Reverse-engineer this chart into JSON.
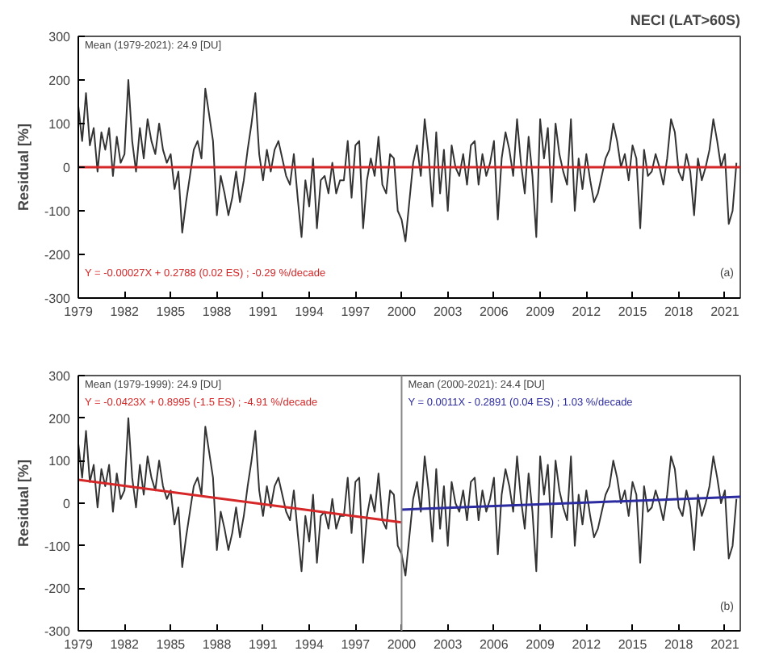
{
  "chart_data": [
    {
      "type": "line",
      "title": "NECI (LAT>60S)",
      "ylabel": "Residual [%]",
      "xlim": [
        1979,
        2022
      ],
      "xticks": [
        1979,
        1982,
        1985,
        1988,
        1991,
        1994,
        1997,
        2000,
        2003,
        2006,
        2009,
        2012,
        2015,
        2018,
        2021
      ],
      "ylim": [
        -300,
        300
      ],
      "yticks": [
        -300,
        -200,
        -100,
        0,
        100,
        200,
        300
      ],
      "grid": false,
      "marker": "none",
      "line_style": "solid",
      "x": [
        1979,
        1979.25,
        1979.5,
        1979.75,
        1980,
        1980.25,
        1980.5,
        1980.75,
        1981,
        1981.25,
        1981.5,
        1981.75,
        1982,
        1982.25,
        1982.5,
        1982.75,
        1983,
        1983.25,
        1983.5,
        1983.75,
        1984,
        1984.25,
        1984.5,
        1984.75,
        1985,
        1985.25,
        1985.5,
        1985.75,
        1986,
        1986.25,
        1986.5,
        1986.75,
        1987,
        1987.25,
        1987.5,
        1987.75,
        1988,
        1988.25,
        1988.5,
        1988.75,
        1989,
        1989.25,
        1989.5,
        1989.75,
        1990,
        1990.25,
        1990.5,
        1990.75,
        1991,
        1991.25,
        1991.5,
        1991.75,
        1992,
        1992.25,
        1992.5,
        1992.75,
        1993,
        1993.25,
        1993.5,
        1993.75,
        1994,
        1994.25,
        1994.5,
        1994.75,
        1995,
        1995.25,
        1995.5,
        1995.75,
        1996,
        1996.25,
        1996.5,
        1996.75,
        1997,
        1997.25,
        1997.5,
        1997.75,
        1998,
        1998.25,
        1998.5,
        1998.75,
        1999,
        1999.25,
        1999.5,
        1999.75,
        2000,
        2000.25,
        2000.5,
        2000.75,
        2001,
        2001.25,
        2001.5,
        2001.75,
        2002,
        2002.25,
        2002.5,
        2002.75,
        2003,
        2003.25,
        2003.5,
        2003.75,
        2004,
        2004.25,
        2004.5,
        2004.75,
        2005,
        2005.25,
        2005.5,
        2005.75,
        2006,
        2006.25,
        2006.5,
        2006.75,
        2007,
        2007.25,
        2007.5,
        2007.75,
        2008,
        2008.25,
        2008.5,
        2008.75,
        2009,
        2009.25,
        2009.5,
        2009.75,
        2010,
        2010.25,
        2010.5,
        2010.75,
        2011,
        2011.25,
        2011.5,
        2011.75,
        2012,
        2012.25,
        2012.5,
        2012.75,
        2013,
        2013.25,
        2013.5,
        2013.75,
        2014,
        2014.25,
        2014.5,
        2014.75,
        2015,
        2015.25,
        2015.5,
        2015.75,
        2016,
        2016.25,
        2016.5,
        2016.75,
        2017,
        2017.25,
        2017.5,
        2017.75,
        2018,
        2018.25,
        2018.5,
        2018.75,
        2019,
        2019.25,
        2019.5,
        2019.75,
        2020,
        2020.25,
        2020.5,
        2020.75,
        2021,
        2021.25,
        2021.5,
        2021.75
      ],
      "series": [
        {
          "color": "#333333",
          "values": [
            140,
            60,
            170,
            50,
            90,
            -10,
            80,
            40,
            90,
            -20,
            70,
            10,
            30,
            200,
            60,
            -10,
            90,
            20,
            110,
            60,
            30,
            100,
            40,
            10,
            30,
            -50,
            -10,
            -150,
            -80,
            -20,
            40,
            60,
            20,
            180,
            120,
            60,
            -110,
            -20,
            -60,
            -110,
            -70,
            -10,
            -80,
            -30,
            40,
            100,
            170,
            30,
            -30,
            40,
            -10,
            40,
            60,
            20,
            -20,
            -40,
            30,
            -70,
            -160,
            -30,
            -90,
            20,
            -140,
            -30,
            -20,
            -60,
            10,
            -60,
            -30,
            -30,
            60,
            -70,
            50,
            60,
            -140,
            -30,
            20,
            -20,
            70,
            -40,
            -60,
            30,
            20,
            -100,
            -120,
            -170,
            -80,
            10,
            50,
            -20,
            110,
            30,
            -90,
            80,
            -60,
            40,
            -100,
            50,
            0,
            -20,
            30,
            -40,
            50,
            60,
            -40,
            30,
            -20,
            10,
            60,
            -120,
            20,
            80,
            40,
            -20,
            110,
            10,
            -60,
            70,
            -20,
            -160,
            110,
            20,
            90,
            -80,
            100,
            30,
            -10,
            -40,
            110,
            -100,
            20,
            -50,
            30,
            -30,
            -80,
            -60,
            -20,
            20,
            40,
            100,
            60,
            0,
            30,
            -30,
            50,
            20,
            -140,
            40,
            -20,
            -10,
            30,
            0,
            -40,
            20,
            110,
            80,
            -10,
            -30,
            30,
            -10,
            -110,
            20,
            -30,
            0,
            40,
            110,
            60,
            0,
            30,
            -130,
            -100,
            10
          ]
        },
        {
          "type": "line",
          "name": "Y = -0.00027X + 0.2788 (0.02 ES) ; -0.29 %/decade",
          "color": "#d62728",
          "x": [
            1979,
            2022
          ],
          "values": [
            0,
            0
          ]
        }
      ],
      "annotations": [
        "Mean (1979-2021): 24.9 [DU]",
        "(a)"
      ]
    },
    {
      "type": "line",
      "ylabel": "Residual [%]",
      "xlim": [
        1979,
        2022
      ],
      "xticks": [
        1979,
        1982,
        1985,
        1988,
        1991,
        1994,
        1997,
        2000,
        2003,
        2006,
        2009,
        2012,
        2015,
        2018,
        2021
      ],
      "ylim": [
        -300,
        300
      ],
      "yticks": [
        -300,
        -200,
        -100,
        0,
        100,
        200,
        300
      ],
      "grid": false,
      "marker": "none",
      "line_style": "solid",
      "x": [
        1979,
        1979.25,
        1979.5,
        1979.75,
        1980,
        1980.25,
        1980.5,
        1980.75,
        1981,
        1981.25,
        1981.5,
        1981.75,
        1982,
        1982.25,
        1982.5,
        1982.75,
        1983,
        1983.25,
        1983.5,
        1983.75,
        1984,
        1984.25,
        1984.5,
        1984.75,
        1985,
        1985.25,
        1985.5,
        1985.75,
        1986,
        1986.25,
        1986.5,
        1986.75,
        1987,
        1987.25,
        1987.5,
        1987.75,
        1988,
        1988.25,
        1988.5,
        1988.75,
        1989,
        1989.25,
        1989.5,
        1989.75,
        1990,
        1990.25,
        1990.5,
        1990.75,
        1991,
        1991.25,
        1991.5,
        1991.75,
        1992,
        1992.25,
        1992.5,
        1992.75,
        1993,
        1993.25,
        1993.5,
        1993.75,
        1994,
        1994.25,
        1994.5,
        1994.75,
        1995,
        1995.25,
        1995.5,
        1995.75,
        1996,
        1996.25,
        1996.5,
        1996.75,
        1997,
        1997.25,
        1997.5,
        1997.75,
        1998,
        1998.25,
        1998.5,
        1998.75,
        1999,
        1999.25,
        1999.5,
        1999.75,
        2000,
        2000.25,
        2000.5,
        2000.75,
        2001,
        2001.25,
        2001.5,
        2001.75,
        2002,
        2002.25,
        2002.5,
        2002.75,
        2003,
        2003.25,
        2003.5,
        2003.75,
        2004,
        2004.25,
        2004.5,
        2004.75,
        2005,
        2005.25,
        2005.5,
        2005.75,
        2006,
        2006.25,
        2006.5,
        2006.75,
        2007,
        2007.25,
        2007.5,
        2007.75,
        2008,
        2008.25,
        2008.5,
        2008.75,
        2009,
        2009.25,
        2009.5,
        2009.75,
        2010,
        2010.25,
        2010.5,
        2010.75,
        2011,
        2011.25,
        2011.5,
        2011.75,
        2012,
        2012.25,
        2012.5,
        2012.75,
        2013,
        2013.25,
        2013.5,
        2013.75,
        2014,
        2014.25,
        2014.5,
        2014.75,
        2015,
        2015.25,
        2015.5,
        2015.75,
        2016,
        2016.25,
        2016.5,
        2016.75,
        2017,
        2017.25,
        2017.5,
        2017.75,
        2018,
        2018.25,
        2018.5,
        2018.75,
        2019,
        2019.25,
        2019.5,
        2019.75,
        2020,
        2020.25,
        2020.5,
        2020.75,
        2021,
        2021.25,
        2021.5,
        2021.75
      ],
      "series": [
        {
          "color": "#333333",
          "values": [
            140,
            60,
            170,
            50,
            90,
            -10,
            80,
            40,
            90,
            -20,
            70,
            10,
            30,
            200,
            60,
            -10,
            90,
            20,
            110,
            60,
            30,
            100,
            40,
            10,
            30,
            -50,
            -10,
            -150,
            -80,
            -20,
            40,
            60,
            20,
            180,
            120,
            60,
            -110,
            -20,
            -60,
            -110,
            -70,
            -10,
            -80,
            -30,
            40,
            100,
            170,
            30,
            -30,
            40,
            -10,
            40,
            60,
            20,
            -20,
            -40,
            30,
            -70,
            -160,
            -30,
            -90,
            20,
            -140,
            -30,
            -20,
            -60,
            10,
            -60,
            -30,
            -30,
            60,
            -70,
            50,
            60,
            -140,
            -30,
            20,
            -20,
            70,
            -40,
            -60,
            30,
            20,
            -100,
            -120,
            -170,
            -80,
            10,
            50,
            -20,
            110,
            30,
            -90,
            80,
            -60,
            40,
            -100,
            50,
            0,
            -20,
            30,
            -40,
            50,
            60,
            -40,
            30,
            -20,
            10,
            60,
            -120,
            20,
            80,
            40,
            -20,
            110,
            10,
            -60,
            70,
            -20,
            -160,
            110,
            20,
            90,
            -80,
            100,
            30,
            -10,
            -40,
            110,
            -100,
            20,
            -50,
            30,
            -30,
            -80,
            -60,
            -20,
            20,
            40,
            100,
            60,
            0,
            30,
            -30,
            50,
            20,
            -140,
            40,
            -20,
            -10,
            30,
            0,
            -40,
            20,
            110,
            80,
            -10,
            -30,
            30,
            -10,
            -110,
            20,
            -30,
            0,
            40,
            110,
            60,
            0,
            30,
            -130,
            -100,
            10
          ]
        },
        {
          "type": "line",
          "name": "Y = -0.0423X + 0.8995 (-1.5 ES) ; -4.91 %/decade",
          "color": "#d62728",
          "x": [
            1979,
            2000
          ],
          "values": [
            55,
            -45
          ]
        },
        {
          "type": "line",
          "name": "Y = 0.0011X - 0.2891 (0.04 ES) ; 1.03 %/decade",
          "color": "#2c2ca0",
          "x": [
            2000,
            2022
          ],
          "values": [
            -15,
            15
          ]
        }
      ],
      "ref_lines": [
        {
          "axis": "x",
          "value": 2000,
          "color": "#888888"
        }
      ],
      "annotations": [
        "Mean (1979-1999): 24.9 [DU]",
        "Mean (2000-2021): 24.4 [DU]",
        "(b)"
      ]
    }
  ]
}
